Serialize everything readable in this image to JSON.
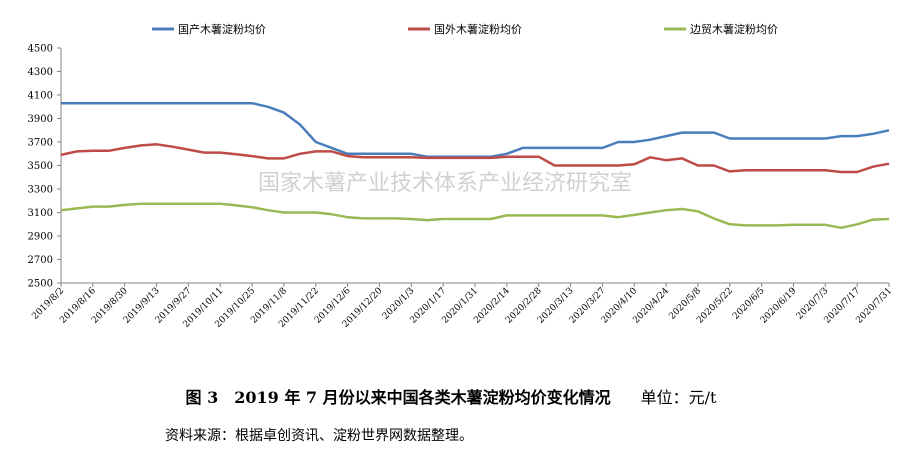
{
  "chart_data": {
    "type": "line",
    "title": "",
    "xlabel": "",
    "ylabel": "",
    "ylim": [
      2500,
      4500
    ],
    "yticks": [
      2500,
      2700,
      2900,
      3100,
      3300,
      3500,
      3700,
      3900,
      4100,
      4300,
      4500
    ],
    "legend_position": "top",
    "grid": false,
    "watermark": "国家木薯产业技术体系产业经济研究室",
    "x": [
      "2019/8/2",
      "2019/8/9",
      "2019/8/16",
      "2019/8/23",
      "2019/8/30",
      "2019/9/6",
      "2019/9/13",
      "2019/9/20",
      "2019/9/27",
      "2019/10/4",
      "2019/10/11",
      "2019/10/18",
      "2019/10/25",
      "2019/11/1",
      "2019/11/8",
      "2019/11/15",
      "2019/11/22",
      "2019/11/29",
      "2019/12/6",
      "2019/12/13",
      "2019/12/20",
      "2019/12/27",
      "2020/1/3",
      "2020/1/10",
      "2020/1/17",
      "2020/1/24",
      "2020/1/31",
      "2020/2/7",
      "2020/2/14",
      "2020/2/21",
      "2020/2/28",
      "2020/3/6",
      "2020/3/13",
      "2020/3/20",
      "2020/3/27",
      "2020/4/3",
      "2020/4/10",
      "2020/4/17",
      "2020/4/24",
      "2020/5/1",
      "2020/5/8",
      "2020/5/15",
      "2020/5/22",
      "2020/5/29",
      "2020/6/5",
      "2020/6/12",
      "2020/6/19",
      "2020/6/26",
      "2020/7/3",
      "2020/7/10",
      "2020/7/17",
      "2020/7/24",
      "2020/7/31"
    ],
    "xtick_labels": [
      "2019/8/2",
      "2019/8/16",
      "2019/8/30",
      "2019/9/13",
      "2019/9/27",
      "2019/10/11",
      "2019/10/25",
      "2019/11/8",
      "2019/11/22",
      "2019/12/6",
      "2019/12/20",
      "2020/1/3",
      "2020/1/17",
      "2020/1/31",
      "2020/2/14",
      "2020/2/28",
      "2020/3/13",
      "2020/3/27",
      "2020/4/10",
      "2020/4/24",
      "2020/5/8",
      "2020/5/22",
      "2020/6/5",
      "2020/6/19",
      "2020/7/3",
      "2020/7/17",
      "2020/7/31"
    ],
    "series": [
      {
        "name": "国产木薯淀粉均价",
        "color": "#4a7ebb",
        "values": [
          4030,
          4030,
          4030,
          4030,
          4030,
          4030,
          4030,
          4030,
          4030,
          4030,
          4030,
          4030,
          4030,
          4000,
          3950,
          3850,
          3700,
          3650,
          3600,
          3600,
          3600,
          3600,
          3600,
          3575,
          3575,
          3575,
          3575,
          3575,
          3600,
          3650,
          3650,
          3650,
          3650,
          3650,
          3650,
          3700,
          3700,
          3720,
          3750,
          3780,
          3780,
          3780,
          3730,
          3730,
          3730,
          3730,
          3730,
          3730,
          3730,
          3750,
          3750,
          3770,
          3800
        ]
      },
      {
        "name": "国外木薯淀粉均价",
        "color": "#be4b48",
        "values": [
          3590,
          3620,
          3625,
          3625,
          3650,
          3670,
          3680,
          3660,
          3635,
          3610,
          3610,
          3595,
          3580,
          3560,
          3560,
          3600,
          3620,
          3620,
          3580,
          3570,
          3570,
          3570,
          3570,
          3565,
          3565,
          3565,
          3565,
          3565,
          3575,
          3575,
          3575,
          3500,
          3500,
          3500,
          3500,
          3500,
          3510,
          3570,
          3545,
          3560,
          3500,
          3500,
          3450,
          3460,
          3460,
          3460,
          3460,
          3460,
          3460,
          3445,
          3445,
          3490,
          3515
        ]
      },
      {
        "name": "边贸木薯淀粉均价",
        "color": "#98b954",
        "values": [
          3120,
          3135,
          3150,
          3150,
          3165,
          3175,
          3175,
          3175,
          3175,
          3175,
          3175,
          3160,
          3145,
          3120,
          3100,
          3100,
          3100,
          3085,
          3060,
          3050,
          3050,
          3050,
          3045,
          3035,
          3045,
          3045,
          3045,
          3045,
          3075,
          3075,
          3075,
          3075,
          3075,
          3075,
          3075,
          3060,
          3080,
          3100,
          3120,
          3130,
          3110,
          3050,
          3000,
          2990,
          2990,
          2990,
          2995,
          2995,
          2995,
          2970,
          3000,
          3040,
          3045
        ]
      }
    ]
  },
  "caption": {
    "figure": "图 3　2019 年 7 月份以来中国各类木薯淀粉均价变化情况",
    "unit": "单位：元/t"
  },
  "source_note": "资料来源：根据卓创资讯、淀粉世界网数据整理。"
}
